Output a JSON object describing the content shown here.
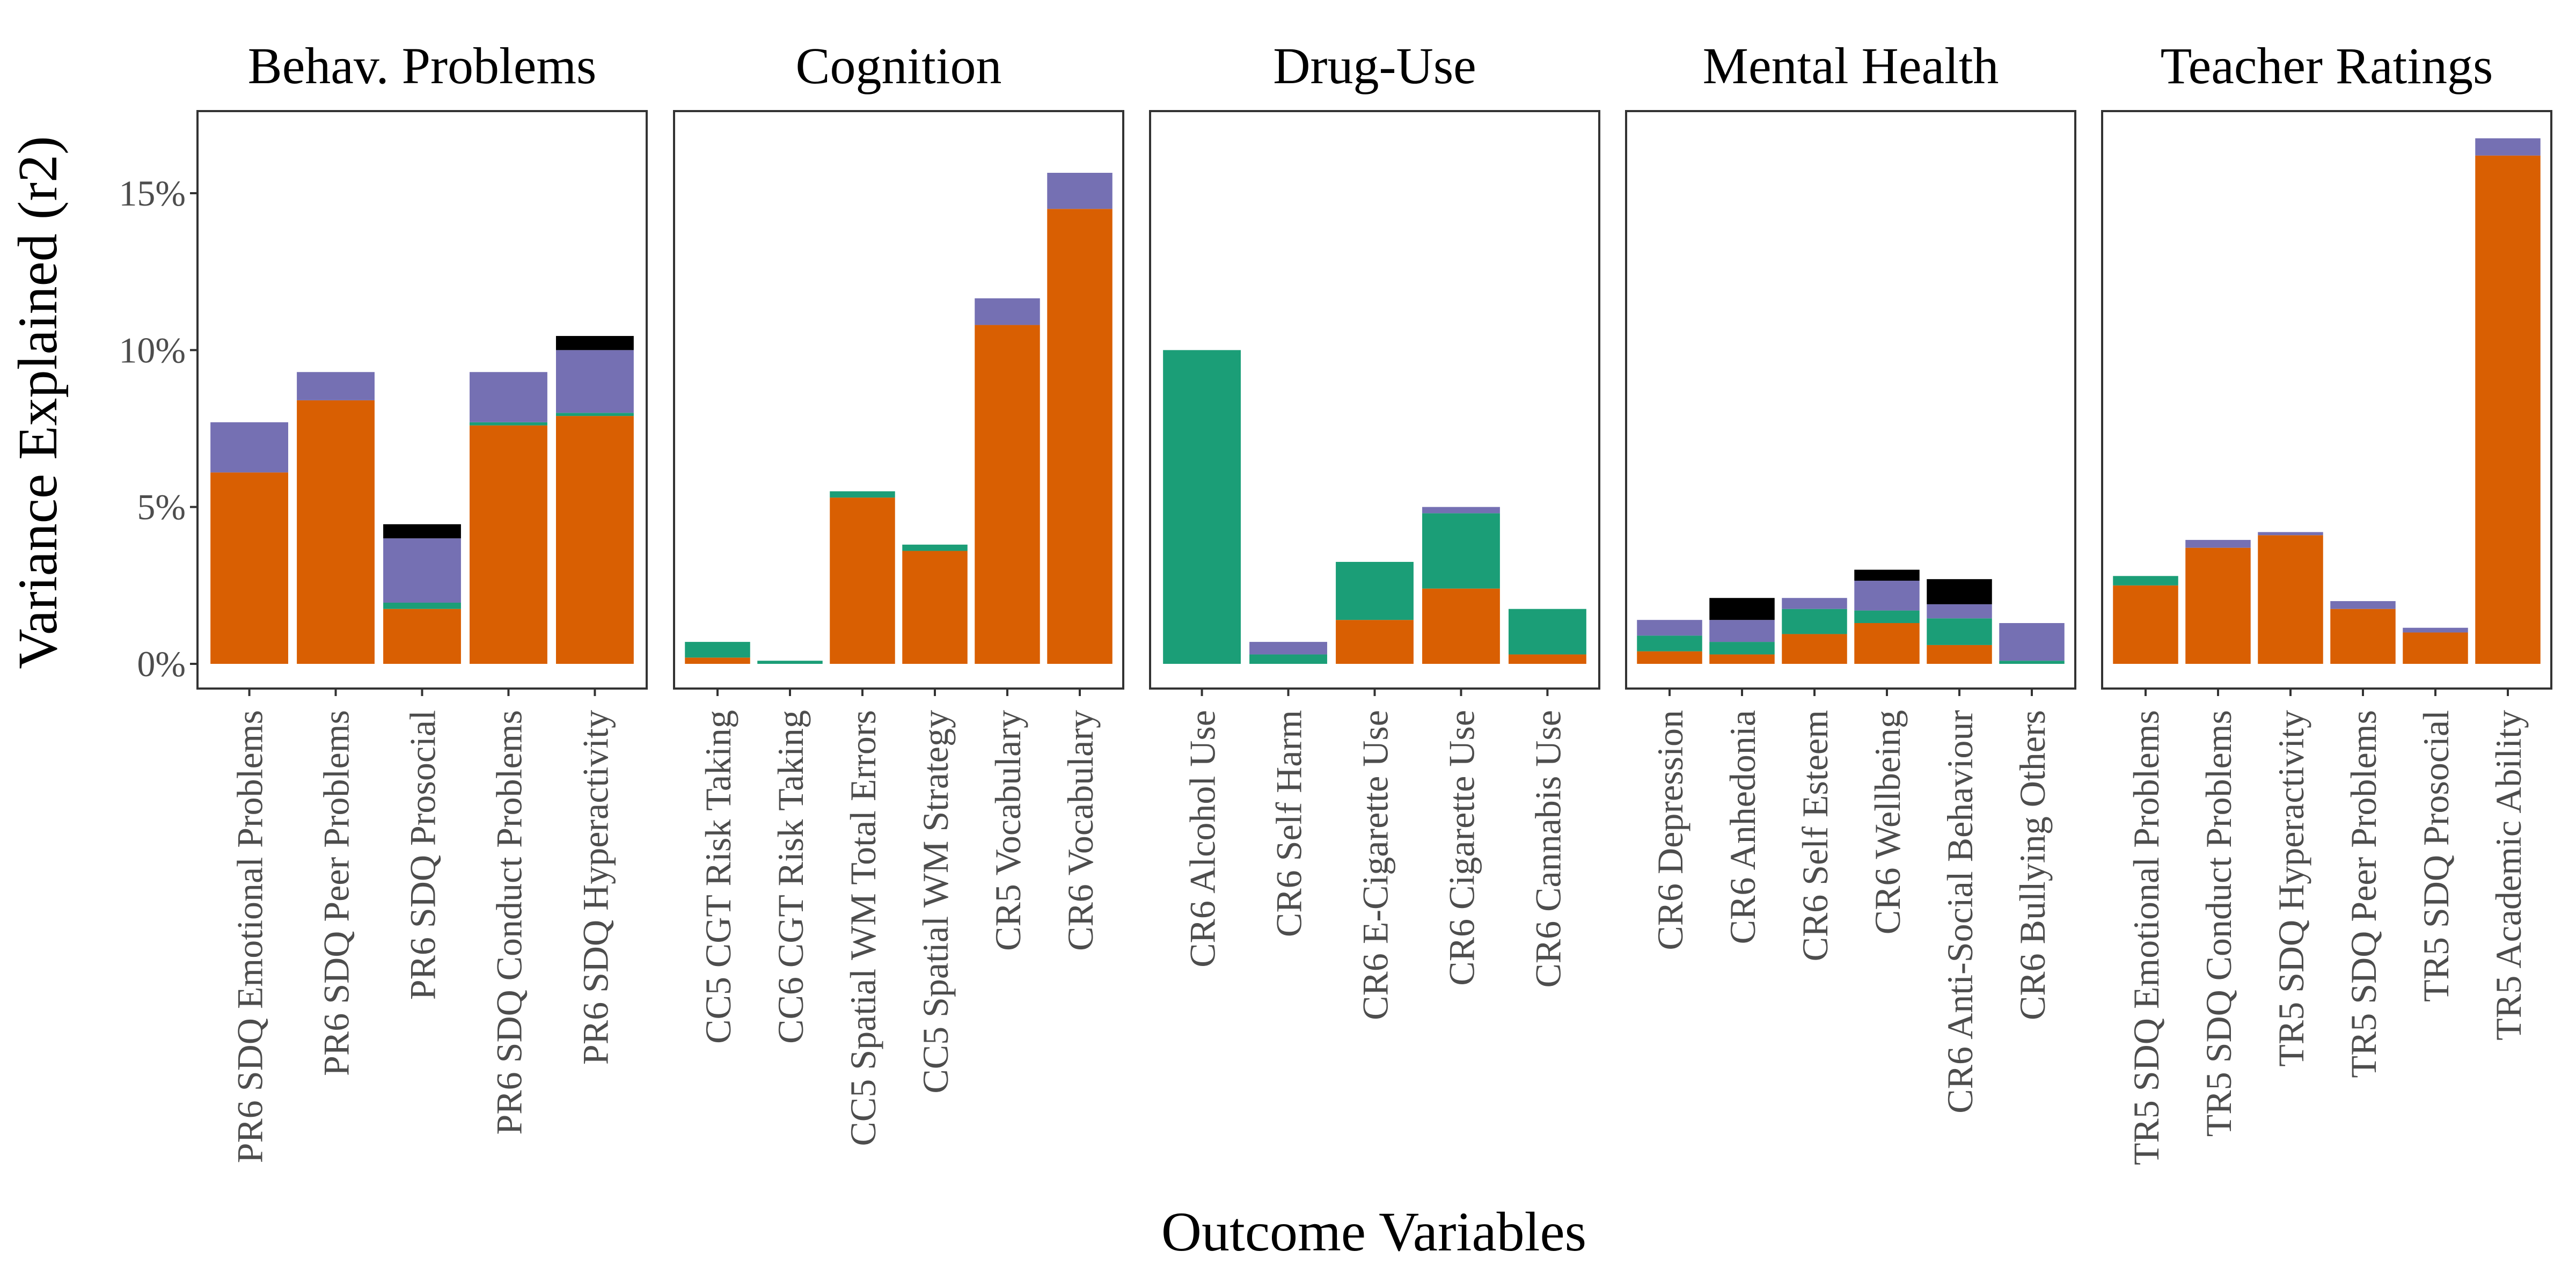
{
  "chart_data": {
    "type": "bar",
    "stacked": true,
    "ylabel": "Variance Explained",
    "ylabel_symbol": "(r2)",
    "xlabel": "Outcome Variables",
    "ylim": [
      0,
      17.5
    ],
    "yticks": [
      0,
      5,
      10,
      15
    ],
    "ytick_labels": [
      "0%",
      "5%",
      "10%",
      "15%"
    ],
    "segment_colors": [
      "#d95f02",
      "#1b9e77",
      "#7570b3",
      "#000000"
    ],
    "facets": [
      {
        "title": "Behav. Problems",
        "categories": [
          "PR6 SDQ Emotional Problems",
          "PR6 SDQ Peer Problems",
          "PR6 SDQ Prosocial",
          "PR6 SDQ Conduct Problems",
          "PR6 SDQ Hyperactivity"
        ],
        "stacks": [
          [
            6.1,
            0.0,
            1.6,
            0.0
          ],
          [
            8.4,
            0.0,
            0.9,
            0.0
          ],
          [
            1.75,
            0.2,
            2.05,
            0.45
          ],
          [
            7.6,
            0.1,
            1.6,
            0.0
          ],
          [
            7.9,
            0.1,
            2.0,
            0.45
          ]
        ]
      },
      {
        "title": "Cognition",
        "categories": [
          "CC5 CGT Risk Taking",
          "CC6 CGT Risk Taking",
          "CC5 Spatial WM Total Errors",
          "CC5 Spatial WM Strategy",
          "CR5 Vocabulary",
          "CR6 Vocabulary"
        ],
        "stacks": [
          [
            0.2,
            0.5,
            0.0,
            0.0
          ],
          [
            0.0,
            0.1,
            0.0,
            0.0
          ],
          [
            5.3,
            0.2,
            0.0,
            0.0
          ],
          [
            3.6,
            0.2,
            0.0,
            0.0
          ],
          [
            10.8,
            0.0,
            0.85,
            0.0
          ],
          [
            14.5,
            0.0,
            1.15,
            0.0
          ]
        ]
      },
      {
        "title": "Drug-Use",
        "categories": [
          "CR6 Alcohol Use",
          "CR6 Self Harm",
          "CR6 E-Cigarette Use",
          "CR6 Cigarette Use",
          "CR6 Cannabis Use"
        ],
        "stacks": [
          [
            0.0,
            10.0,
            0.0,
            0.0
          ],
          [
            0.0,
            0.3,
            0.4,
            0.0
          ],
          [
            1.4,
            1.85,
            0.0,
            0.0
          ],
          [
            2.4,
            2.4,
            0.2,
            0.0
          ],
          [
            0.3,
            1.45,
            0.0,
            0.0
          ]
        ]
      },
      {
        "title": "Mental Health",
        "categories": [
          "CR6 Depression",
          "CR6 Anhedonia",
          "CR6 Self Esteem",
          "CR6 Wellbeing",
          "CR6 Anti-Social Behaviour",
          "CR6 Bullying Others"
        ],
        "stacks": [
          [
            0.4,
            0.5,
            0.5,
            0.0
          ],
          [
            0.3,
            0.4,
            0.7,
            0.7
          ],
          [
            0.95,
            0.8,
            0.35,
            0.0
          ],
          [
            1.3,
            0.4,
            0.95,
            0.35
          ],
          [
            0.6,
            0.85,
            0.45,
            0.8
          ],
          [
            0.0,
            0.1,
            1.2,
            0.0
          ]
        ]
      },
      {
        "title": "Teacher Ratings",
        "categories": [
          "TR5 SDQ Emotional Problems",
          "TR5 SDQ Conduct Problems",
          "TR5 SDQ Hyperactivity",
          "TR5 SDQ Peer Problems",
          "TR5 SDQ Prosocial",
          "TR5 Academic Ability"
        ],
        "stacks": [
          [
            2.5,
            0.3,
            0.0,
            0.0
          ],
          [
            3.7,
            0.0,
            0.25,
            0.0
          ],
          [
            4.1,
            0.0,
            0.1,
            0.0
          ],
          [
            1.75,
            0.0,
            0.25,
            0.0
          ],
          [
            1.0,
            0.0,
            0.15,
            0.0
          ],
          [
            16.2,
            0.0,
            0.55,
            0.0
          ]
        ]
      }
    ]
  }
}
